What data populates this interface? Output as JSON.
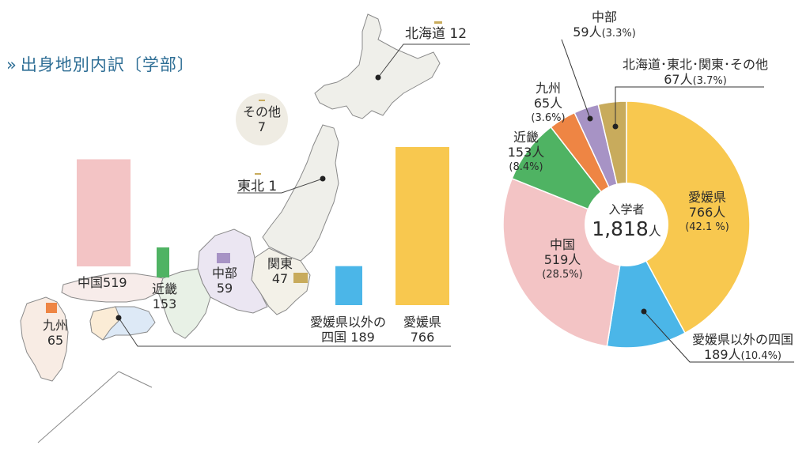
{
  "title": "出身地別内訳〔学部〕",
  "title_mark": "»",
  "chart_data": [
    {
      "type": "bar",
      "categories": [
        "北海道",
        "東北",
        "関東",
        "中部",
        "近畿",
        "中国",
        "四国",
        "九州",
        "その他",
        "愛媛県以外の四国",
        "愛媛県"
      ],
      "values": [
        12,
        1,
        47,
        59,
        153,
        519,
        189,
        65,
        7,
        189,
        766
      ],
      "labels": {
        "hokkaido": {
          "name": "北海道",
          "value": "12"
        },
        "tohoku": {
          "name": "東北",
          "value": "1"
        },
        "kanto": {
          "name": "関東",
          "value": "47"
        },
        "chubu": {
          "name": "中部",
          "value": "59"
        },
        "kinki": {
          "name": "近畿",
          "value": "153"
        },
        "chugoku": {
          "name": "中国",
          "value": "519"
        },
        "kyushu": {
          "name": "九州",
          "value": "65"
        },
        "other": {
          "name": "その他",
          "value": "7"
        },
        "shikoku_line1": "愛媛県以外の",
        "shikoku_line2": "四国",
        "shikoku_value": "189",
        "ehime": {
          "name": "愛媛県",
          "value": "766"
        }
      },
      "colors": {
        "ehime": "#f8c84f",
        "shikoku": "#4bb6e8",
        "chugoku": "#f3c4c5",
        "kinki": "#4fb363",
        "kyushu": "#ee8544",
        "chubu": "#a793c5",
        "hokkaido_tohoku_kanto": "#c8ab5c"
      }
    },
    {
      "type": "pie",
      "center_title": "入学者",
      "center_value": "1,818",
      "center_unit": "人",
      "total": 1818,
      "slices": [
        {
          "key": "ehime",
          "name": "愛媛県",
          "count": "766人",
          "pct": "(42.1 %)",
          "value": 766,
          "color": "#f8c84f"
        },
        {
          "key": "shikoku",
          "name": "愛媛県以外の四国",
          "count": "189人",
          "pct": "(10.4%)",
          "value": 189,
          "color": "#4bb6e8"
        },
        {
          "key": "chugoku",
          "name": "中国",
          "count": "519人",
          "pct": "(28.5%)",
          "value": 519,
          "color": "#f3c4c5"
        },
        {
          "key": "kinki",
          "name": "近畿",
          "count": "153人",
          "pct": "(8.4%)",
          "value": 153,
          "color": "#4fb363"
        },
        {
          "key": "kyushu",
          "name": "九州",
          "count": "65人",
          "pct": "(3.6%)",
          "value": 65,
          "color": "#ee8544"
        },
        {
          "key": "chubu",
          "name": "中部",
          "count": "59人",
          "pct": "(3.3%)",
          "value": 59,
          "color": "#a793c5"
        },
        {
          "key": "other",
          "name": "北海道･東北･関東･その他",
          "count": "67人",
          "pct": "(3.7%)",
          "value": 67,
          "color": "#c8ab5c"
        }
      ]
    }
  ]
}
